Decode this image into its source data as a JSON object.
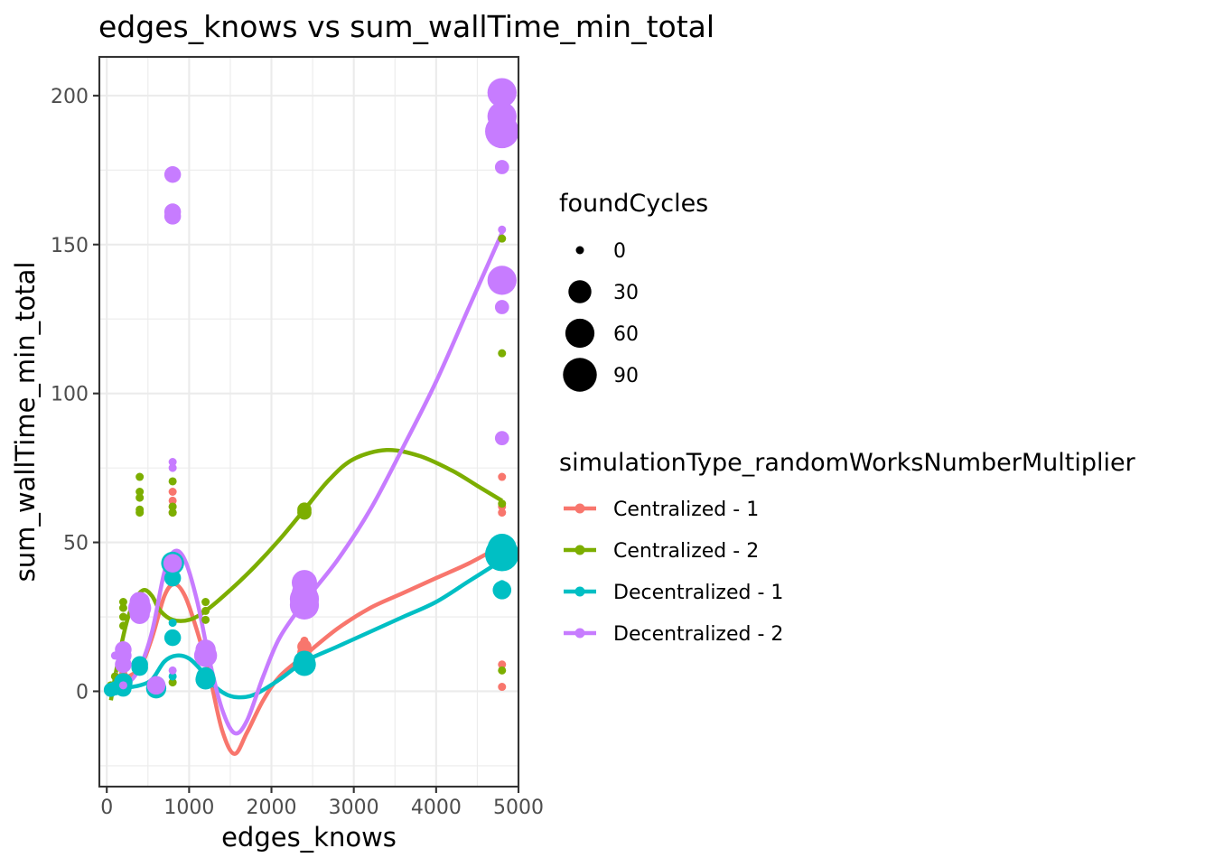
{
  "chart_data": {
    "type": "scatter",
    "title": "edges_knows  vs  sum_wallTime_min_total",
    "xlabel": "edges_knows",
    "ylabel": "sum_wallTime_min_total",
    "xlim": [
      -90,
      5000
    ],
    "ylim": [
      -32,
      213
    ],
    "x_ticks": [
      0,
      1000,
      2000,
      3000,
      4000,
      5000
    ],
    "y_ticks": [
      0,
      50,
      100,
      150,
      200
    ],
    "grid": true,
    "size_legend": {
      "title": "foundCycles",
      "entries": [
        {
          "label": "0",
          "value": 0
        },
        {
          "label": "30",
          "value": 30
        },
        {
          "label": "60",
          "value": 60
        },
        {
          "label": "90",
          "value": 90
        }
      ]
    },
    "color_legend_title": "simulationType_randomWorksNumberMultiplier",
    "series": [
      {
        "name": "Centralized - 1",
        "color": "#F8766D",
        "points": [
          {
            "x": 50,
            "y": 1,
            "s": 0
          },
          {
            "x": 100,
            "y": 2,
            "s": 0
          },
          {
            "x": 200,
            "y": 4,
            "s": 5
          },
          {
            "x": 200,
            "y": 6,
            "s": 0
          },
          {
            "x": 400,
            "y": 10,
            "s": 0
          },
          {
            "x": 400,
            "y": 26,
            "s": 0
          },
          {
            "x": 600,
            "y": 3,
            "s": 0
          },
          {
            "x": 800,
            "y": 60,
            "s": 0
          },
          {
            "x": 800,
            "y": 62,
            "s": 0
          },
          {
            "x": 800,
            "y": 64,
            "s": 0
          },
          {
            "x": 800,
            "y": 67,
            "s": 0
          },
          {
            "x": 1200,
            "y": 12,
            "s": 0
          },
          {
            "x": 1200,
            "y": 16,
            "s": 0
          },
          {
            "x": 2400,
            "y": 13,
            "s": 5
          },
          {
            "x": 2400,
            "y": 15,
            "s": 5
          },
          {
            "x": 2400,
            "y": 17,
            "s": 0
          },
          {
            "x": 4800,
            "y": 1.5,
            "s": 0
          },
          {
            "x": 4800,
            "y": 9,
            "s": 0
          },
          {
            "x": 4800,
            "y": 60,
            "s": 0
          },
          {
            "x": 4800,
            "y": 62,
            "s": 0
          },
          {
            "x": 4800,
            "y": 72,
            "s": 0
          }
        ],
        "smooth": [
          [
            0,
            1
          ],
          [
            200,
            4
          ],
          [
            400,
            8
          ],
          [
            550,
            18
          ],
          [
            700,
            32
          ],
          [
            820,
            36
          ],
          [
            950,
            32
          ],
          [
            1100,
            20
          ],
          [
            1250,
            5
          ],
          [
            1400,
            -13
          ],
          [
            1550,
            -21
          ],
          [
            1700,
            -14
          ],
          [
            1900,
            -3
          ],
          [
            2100,
            5
          ],
          [
            2400,
            12
          ],
          [
            2800,
            21
          ],
          [
            3200,
            28
          ],
          [
            3600,
            33
          ],
          [
            4000,
            38
          ],
          [
            4400,
            43
          ],
          [
            4800,
            49
          ]
        ]
      },
      {
        "name": "Centralized - 2",
        "color": "#7CAE00",
        "points": [
          {
            "x": 50,
            "y": 2,
            "s": 0
          },
          {
            "x": 100,
            "y": 5,
            "s": 0
          },
          {
            "x": 200,
            "y": 22,
            "s": 0
          },
          {
            "x": 200,
            "y": 25,
            "s": 0
          },
          {
            "x": 200,
            "y": 28,
            "s": 0
          },
          {
            "x": 200,
            "y": 30,
            "s": 0
          },
          {
            "x": 400,
            "y": 60,
            "s": 0
          },
          {
            "x": 400,
            "y": 61,
            "s": 0
          },
          {
            "x": 400,
            "y": 65,
            "s": 0
          },
          {
            "x": 400,
            "y": 67,
            "s": 0
          },
          {
            "x": 400,
            "y": 72,
            "s": 0
          },
          {
            "x": 800,
            "y": 3,
            "s": 0
          },
          {
            "x": 800,
            "y": 60,
            "s": 0
          },
          {
            "x": 800,
            "y": 62,
            "s": 0
          },
          {
            "x": 800,
            "y": 70.5,
            "s": 0
          },
          {
            "x": 1200,
            "y": 24,
            "s": 0
          },
          {
            "x": 1200,
            "y": 27,
            "s": 0
          },
          {
            "x": 1200,
            "y": 30,
            "s": 0
          },
          {
            "x": 2400,
            "y": 60,
            "s": 5
          },
          {
            "x": 2400,
            "y": 61,
            "s": 5
          },
          {
            "x": 4800,
            "y": 7,
            "s": 0
          },
          {
            "x": 4800,
            "y": 63,
            "s": 0
          },
          {
            "x": 4800,
            "y": 113.5,
            "s": 0
          },
          {
            "x": 4800,
            "y": 152,
            "s": 0
          }
        ],
        "smooth": [
          [
            50,
            -3
          ],
          [
            150,
            12
          ],
          [
            250,
            24
          ],
          [
            350,
            31
          ],
          [
            450,
            34
          ],
          [
            550,
            32
          ],
          [
            650,
            27
          ],
          [
            800,
            24
          ],
          [
            1000,
            24
          ],
          [
            1200,
            27
          ],
          [
            1500,
            34
          ],
          [
            1800,
            42
          ],
          [
            2100,
            51
          ],
          [
            2400,
            61
          ],
          [
            2700,
            71
          ],
          [
            3000,
            78
          ],
          [
            3400,
            81
          ],
          [
            3800,
            79
          ],
          [
            4200,
            74
          ],
          [
            4500,
            69
          ],
          [
            4800,
            64
          ]
        ]
      },
      {
        "name": "Decentralized - 1",
        "color": "#00BFC4",
        "points": [
          {
            "x": 50,
            "y": 0.5,
            "s": 5
          },
          {
            "x": 100,
            "y": 1,
            "s": 5
          },
          {
            "x": 200,
            "y": 1,
            "s": 10
          },
          {
            "x": 200,
            "y": 3,
            "s": 15
          },
          {
            "x": 400,
            "y": 8,
            "s": 10
          },
          {
            "x": 400,
            "y": 9,
            "s": 10
          },
          {
            "x": 600,
            "y": 1,
            "s": 20
          },
          {
            "x": 600,
            "y": 2,
            "s": 15
          },
          {
            "x": 800,
            "y": 5,
            "s": 0
          },
          {
            "x": 800,
            "y": 18,
            "s": 10
          },
          {
            "x": 800,
            "y": 23,
            "s": 0
          },
          {
            "x": 800,
            "y": 38,
            "s": 10
          },
          {
            "x": 800,
            "y": 43,
            "s": 30
          },
          {
            "x": 1200,
            "y": 4,
            "s": 20
          },
          {
            "x": 1200,
            "y": 5,
            "s": 15
          },
          {
            "x": 2400,
            "y": 9,
            "s": 30
          },
          {
            "x": 2400,
            "y": 10,
            "s": 25
          },
          {
            "x": 4800,
            "y": 33,
            "s": 0
          },
          {
            "x": 4800,
            "y": 34,
            "s": 15
          },
          {
            "x": 4800,
            "y": 36,
            "s": 0
          },
          {
            "x": 4800,
            "y": 46,
            "s": 90
          },
          {
            "x": 4800,
            "y": 48,
            "s": 60
          }
        ],
        "smooth": [
          [
            50,
            0
          ],
          [
            200,
            1
          ],
          [
            400,
            2
          ],
          [
            550,
            4
          ],
          [
            700,
            10
          ],
          [
            850,
            12
          ],
          [
            1000,
            11
          ],
          [
            1150,
            7
          ],
          [
            1300,
            2
          ],
          [
            1450,
            -1
          ],
          [
            1600,
            -2
          ],
          [
            1800,
            -1
          ],
          [
            2100,
            4
          ],
          [
            2400,
            10
          ],
          [
            2800,
            15
          ],
          [
            3200,
            20
          ],
          [
            3600,
            25
          ],
          [
            4000,
            30
          ],
          [
            4400,
            37
          ],
          [
            4800,
            44
          ]
        ]
      },
      {
        "name": "Decentralized - 2",
        "color": "#C77CFF",
        "points": [
          {
            "x": 100,
            "y": 12,
            "s": 0
          },
          {
            "x": 200,
            "y": 2,
            "s": 0
          },
          {
            "x": 200,
            "y": 9,
            "s": 10
          },
          {
            "x": 200,
            "y": 12,
            "s": 10
          },
          {
            "x": 200,
            "y": 14,
            "s": 10
          },
          {
            "x": 400,
            "y": 24,
            "s": 0
          },
          {
            "x": 400,
            "y": 26,
            "s": 20
          },
          {
            "x": 400,
            "y": 28,
            "s": 30
          },
          {
            "x": 400,
            "y": 30,
            "s": 20
          },
          {
            "x": 600,
            "y": 2,
            "s": 15
          },
          {
            "x": 800,
            "y": 7,
            "s": 0
          },
          {
            "x": 800,
            "y": 43,
            "s": 15
          },
          {
            "x": 800,
            "y": 75,
            "s": 0
          },
          {
            "x": 800,
            "y": 77,
            "s": 0
          },
          {
            "x": 800,
            "y": 159.5,
            "s": 10
          },
          {
            "x": 800,
            "y": 161,
            "s": 10
          },
          {
            "x": 800,
            "y": 173.5,
            "s": 10
          },
          {
            "x": 1200,
            "y": 12,
            "s": 30
          },
          {
            "x": 1200,
            "y": 14,
            "s": 20
          },
          {
            "x": 2400,
            "y": 29,
            "s": 60
          },
          {
            "x": 2400,
            "y": 31,
            "s": 60
          },
          {
            "x": 2400,
            "y": 33,
            "s": 40
          },
          {
            "x": 2400,
            "y": 36.5,
            "s": 40
          },
          {
            "x": 4800,
            "y": 85,
            "s": 5
          },
          {
            "x": 4800,
            "y": 129,
            "s": 5
          },
          {
            "x": 4800,
            "y": 138,
            "s": 60
          },
          {
            "x": 4800,
            "y": 155,
            "s": 0
          },
          {
            "x": 4800,
            "y": 176,
            "s": 5
          },
          {
            "x": 4800,
            "y": 188,
            "s": 90
          },
          {
            "x": 4800,
            "y": 193,
            "s": 60
          },
          {
            "x": 4800,
            "y": 201,
            "s": 60
          }
        ],
        "smooth": [
          [
            100,
            6
          ],
          [
            250,
            3
          ],
          [
            400,
            8
          ],
          [
            550,
            20
          ],
          [
            700,
            40
          ],
          [
            820,
            47
          ],
          [
            950,
            44
          ],
          [
            1100,
            30
          ],
          [
            1250,
            10
          ],
          [
            1400,
            -6
          ],
          [
            1550,
            -14
          ],
          [
            1700,
            -10
          ],
          [
            1900,
            5
          ],
          [
            2100,
            18
          ],
          [
            2400,
            30
          ],
          [
            2800,
            44
          ],
          [
            3200,
            61
          ],
          [
            3600,
            82
          ],
          [
            4000,
            104
          ],
          [
            4400,
            129
          ],
          [
            4800,
            154
          ]
        ]
      }
    ]
  }
}
